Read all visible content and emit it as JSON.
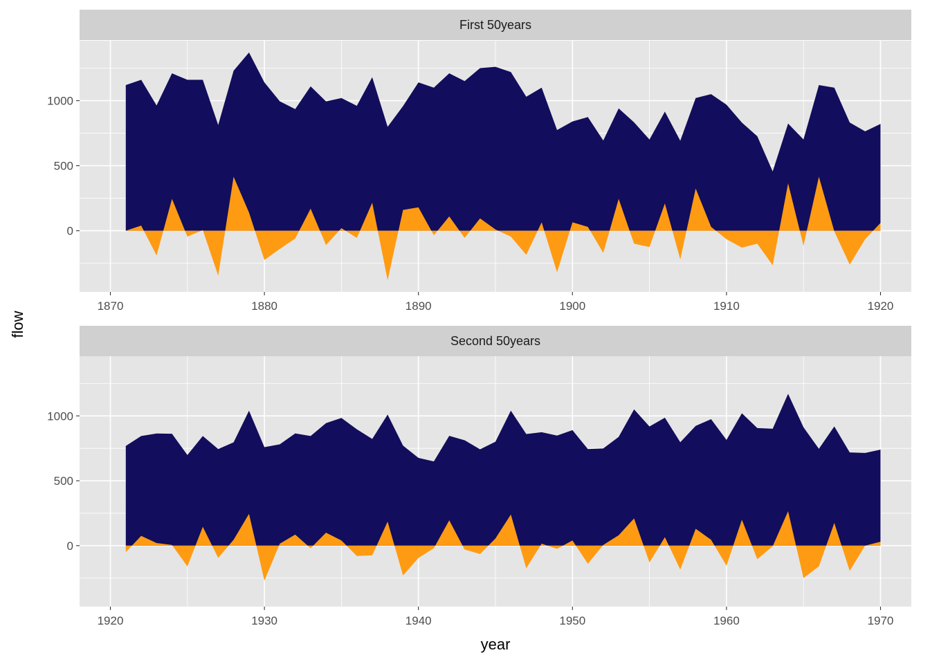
{
  "chart_data": {
    "type": "area",
    "xlabel": "year",
    "ylabel": "flow",
    "colors": {
      "flow_area": "#120D5C",
      "deviation_area": "#FF9B12",
      "panel_background": "#E5E5E5",
      "strip_background": "#D0D0D0",
      "grid_line": "#FFFFFF"
    },
    "panels": [
      {
        "title": "First 50years",
        "xlim": [
          1868,
          1922
        ],
        "ylim": [
          -470,
          1460
        ],
        "x_ticks": [
          "1870",
          "1880",
          "1890",
          "1900",
          "1910",
          "1920"
        ],
        "y_ticks": [
          "0",
          "500",
          "1000"
        ],
        "x": [
          1871,
          1872,
          1873,
          1874,
          1875,
          1876,
          1877,
          1878,
          1879,
          1880,
          1881,
          1882,
          1883,
          1884,
          1885,
          1886,
          1887,
          1888,
          1889,
          1890,
          1891,
          1892,
          1893,
          1894,
          1895,
          1896,
          1897,
          1898,
          1899,
          1900,
          1901,
          1902,
          1903,
          1904,
          1905,
          1906,
          1907,
          1908,
          1909,
          1910,
          1911,
          1912,
          1913,
          1914,
          1915,
          1916,
          1917,
          1918,
          1919,
          1920
        ],
        "flow": [
          1120,
          1160,
          963,
          1210,
          1160,
          1160,
          813,
          1230,
          1370,
          1140,
          995,
          935,
          1110,
          994,
          1020,
          960,
          1180,
          799,
          958,
          1140,
          1100,
          1210,
          1150,
          1250,
          1260,
          1220,
          1030,
          1100,
          774,
          840,
          874,
          694,
          940,
          833,
          701,
          916,
          692,
          1020,
          1050,
          969,
          831,
          726,
          456,
          824,
          702,
          1120,
          1100,
          832,
          764,
          821
        ],
        "deviation": [
          0,
          40,
          -190,
          245,
          -45,
          5,
          -345,
          415,
          140,
          -225,
          -140,
          -60,
          170,
          -110,
          20,
          -55,
          215,
          -380,
          160,
          180,
          -35,
          110,
          -55,
          95,
          10,
          -45,
          -185,
          65,
          -320,
          65,
          30,
          -170,
          245,
          -100,
          -125,
          210,
          -220,
          325,
          30,
          -65,
          -130,
          -100,
          -265,
          365,
          -115,
          415,
          -5,
          -260,
          -65,
          60
        ]
      },
      {
        "title": "Second 50years",
        "xlim": [
          1918,
          1972
        ],
        "ylim": [
          -470,
          1460
        ],
        "x_ticks": [
          "1920",
          "1930",
          "1940",
          "1950",
          "1960",
          "1970"
        ],
        "y_ticks": [
          "0",
          "500",
          "1000"
        ],
        "x": [
          1921,
          1922,
          1923,
          1924,
          1925,
          1926,
          1927,
          1928,
          1929,
          1930,
          1931,
          1932,
          1933,
          1934,
          1935,
          1936,
          1937,
          1938,
          1939,
          1940,
          1941,
          1942,
          1943,
          1944,
          1945,
          1946,
          1947,
          1948,
          1949,
          1950,
          1951,
          1952,
          1953,
          1954,
          1955,
          1956,
          1957,
          1958,
          1959,
          1960,
          1961,
          1962,
          1963,
          1964,
          1965,
          1966,
          1967,
          1968,
          1969,
          1970
        ],
        "flow": [
          768,
          845,
          864,
          862,
          698,
          845,
          744,
          796,
          1040,
          759,
          781,
          865,
          845,
          944,
          984,
          897,
          822,
          1010,
          771,
          676,
          649,
          846,
          812,
          742,
          801,
          1040,
          860,
          874,
          848,
          890,
          744,
          749,
          838,
          1050,
          918,
          986,
          797,
          923,
          975,
          815,
          1020,
          906,
          901,
          1170,
          912,
          746,
          919,
          718,
          714,
          740
        ],
        "deviation": [
          -50,
          75,
          20,
          5,
          -160,
          145,
          -95,
          45,
          245,
          -270,
          15,
          85,
          -20,
          100,
          40,
          -80,
          -75,
          185,
          -230,
          -95,
          -20,
          195,
          -30,
          -65,
          55,
          240,
          -175,
          15,
          -25,
          40,
          -140,
          5,
          80,
          210,
          -130,
          65,
          -185,
          130,
          45,
          -155,
          200,
          -105,
          -5,
          265,
          -250,
          -160,
          175,
          -195,
          0,
          30
        ]
      }
    ]
  }
}
